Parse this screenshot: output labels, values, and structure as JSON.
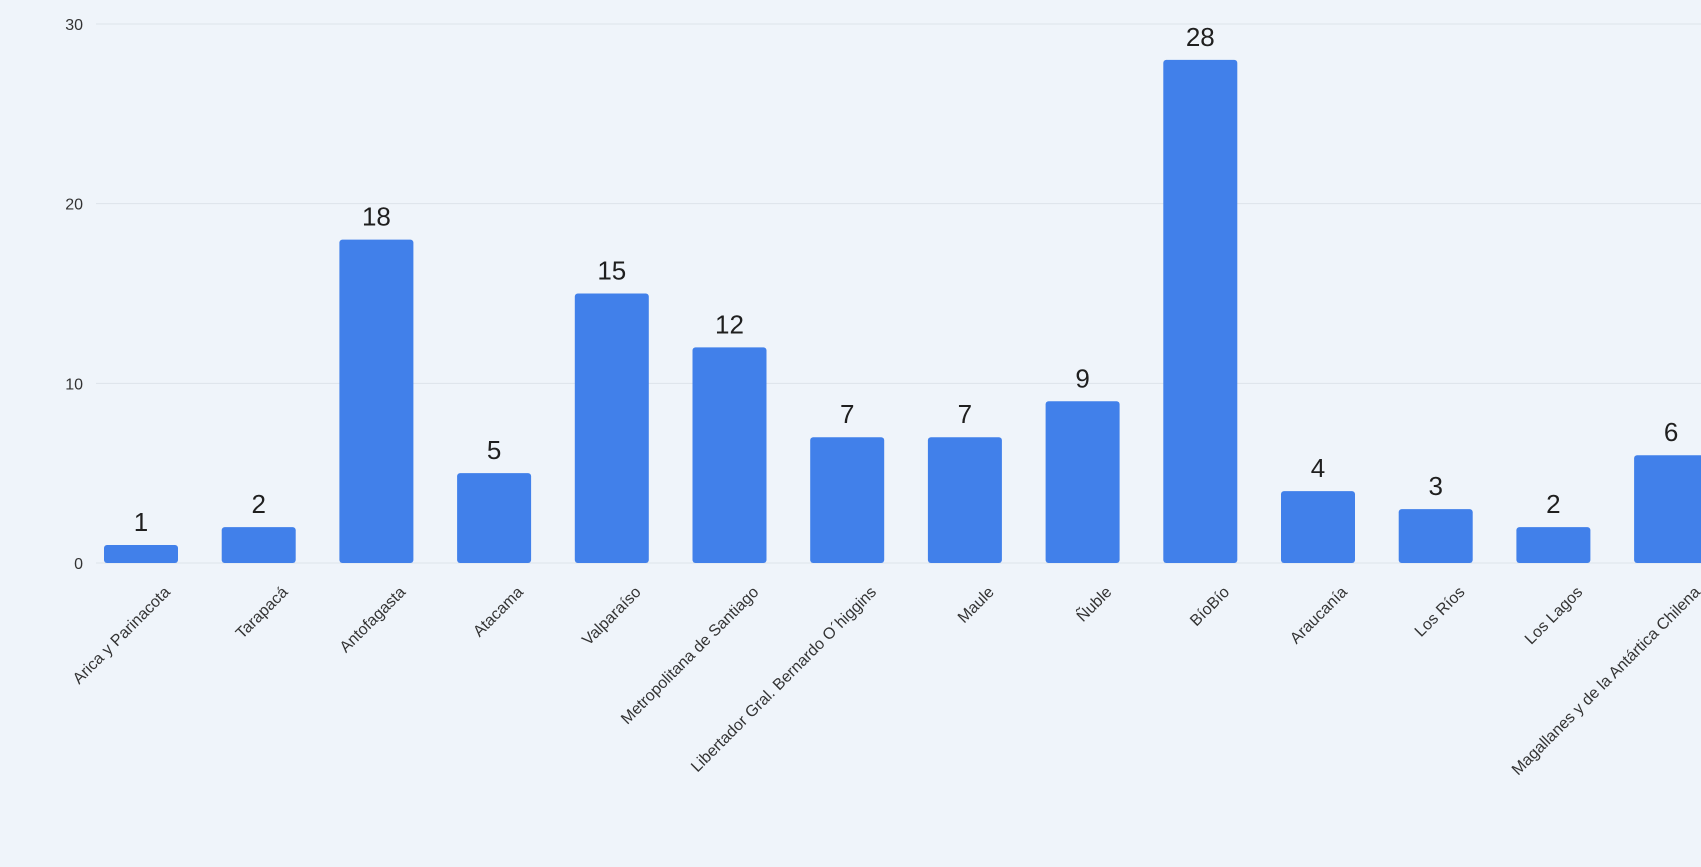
{
  "chart_data": {
    "type": "bar",
    "title": "",
    "xlabel": "",
    "ylabel": "",
    "ylim": [
      0,
      30
    ],
    "yticks": [
      0,
      10,
      20,
      30
    ],
    "grid": true,
    "legend": "none",
    "bar_color": "#4180ea",
    "background": "#eff4fa",
    "categories": [
      "Arica y Parinacota",
      "Tarapacá",
      "Antofagasta",
      "Atacama",
      "Valparaíso",
      "Metropolitana de Santiago",
      "Libertador Gral. Bernardo O´higgins",
      "Maule",
      "Ñuble",
      "BíoBío",
      "Araucanía",
      "Los Ríos",
      "Los Lagos",
      "Magallanes y de la Antártica Chilena"
    ],
    "values": [
      1,
      2,
      18,
      5,
      15,
      12,
      7,
      7,
      9,
      28,
      4,
      3,
      2,
      6
    ]
  }
}
